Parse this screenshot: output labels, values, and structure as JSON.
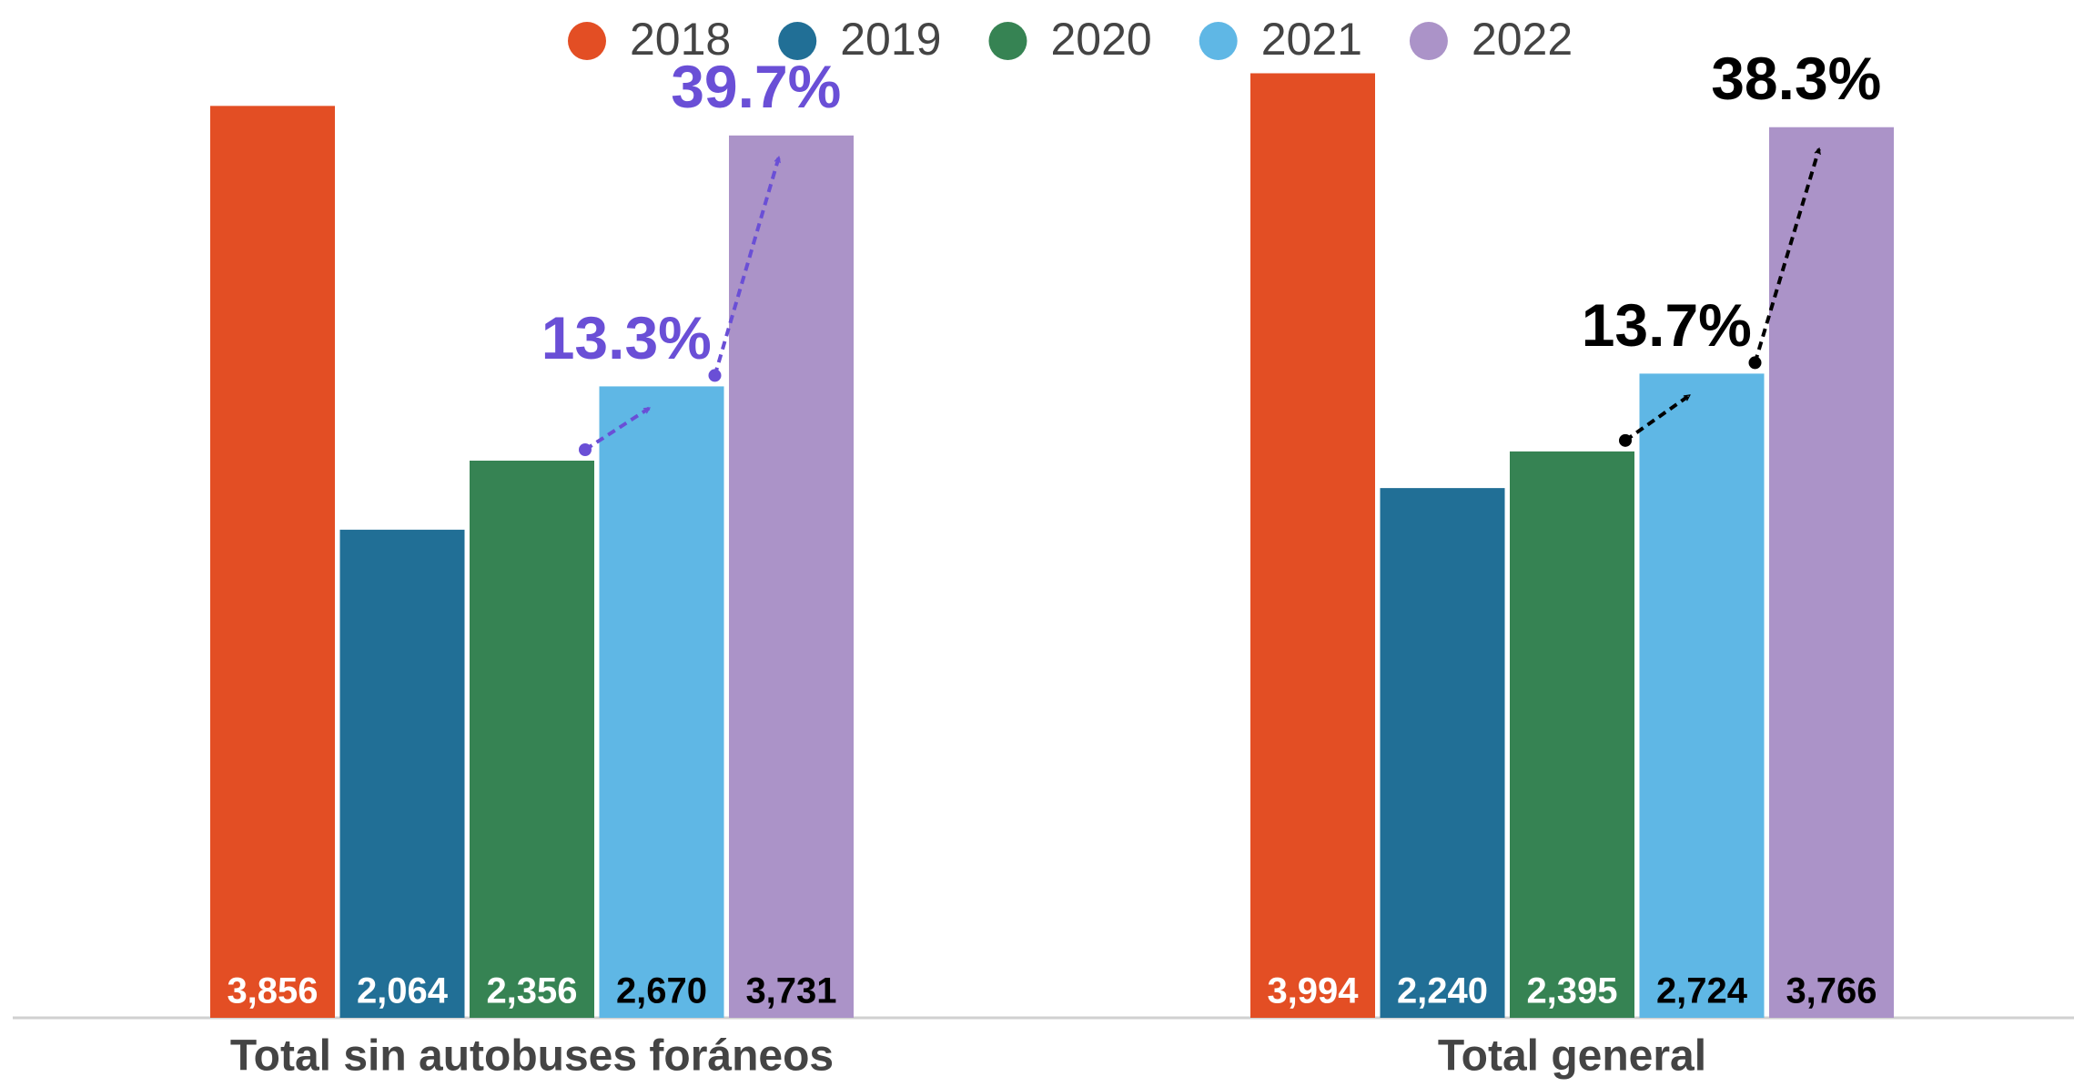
{
  "chart_data": {
    "type": "bar",
    "categories": [
      "Total sin autobuses foráneos",
      "Total general"
    ],
    "series": [
      {
        "name": "2018",
        "color": "#e34e24",
        "label_color": "#ffffff",
        "values": [
          3856,
          3994
        ],
        "value_labels": [
          "3,856",
          "3,994"
        ]
      },
      {
        "name": "2019",
        "color": "#216f96",
        "label_color": "#ffffff",
        "values": [
          2064,
          2240
        ],
        "value_labels": [
          "2,064",
          "2,240"
        ]
      },
      {
        "name": "2020",
        "color": "#368353",
        "label_color": "#ffffff",
        "values": [
          2356,
          2395
        ],
        "value_labels": [
          "2,356",
          "2,395"
        ]
      },
      {
        "name": "2021",
        "color": "#5fb7e5",
        "label_color": "#000000",
        "values": [
          2670,
          2724
        ],
        "value_labels": [
          "2,670",
          "2,724"
        ]
      },
      {
        "name": "2022",
        "color": "#ab93c8",
        "label_color": "#000000",
        "values": [
          3731,
          3766
        ],
        "value_labels": [
          "3,731",
          "3,766"
        ]
      }
    ],
    "annotations": [
      {
        "text": "13.3%",
        "color": "#6a4fd6"
      },
      {
        "text": "39.7%",
        "color": "#6a4fd6"
      },
      {
        "text": "13.7%",
        "color": "#000000"
      },
      {
        "text": "38.3%",
        "color": "#000000"
      }
    ],
    "ylim": [
      0,
      4300
    ],
    "legend": "top"
  }
}
